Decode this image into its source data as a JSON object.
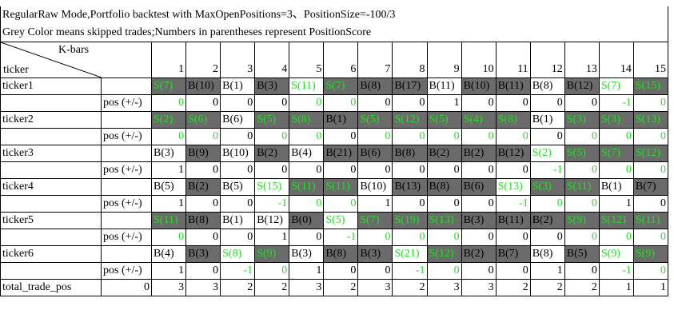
{
  "title_lines": [
    "RegularRaw Mode,Portfolio backtest with MaxOpenPositions=3、PositionSize=-100/3",
    "Grey Color means skipped trades;Numbers in parentheses represent PositionScore"
  ],
  "header": {
    "corner_top": "K-bars",
    "corner_bottom": "ticker",
    "columns": [
      1,
      2,
      3,
      4,
      5,
      6,
      7,
      8,
      9,
      10,
      11,
      12,
      13,
      14,
      15
    ]
  },
  "colors": {
    "skipped_bg": "#6b6b6b",
    "sell_text": "#22e022",
    "border": "#000000"
  },
  "rows": [
    {
      "ticker": "ticker1",
      "pos_label": "pos (+/-)",
      "trades": [
        {
          "text": "S(7)",
          "skipped": true,
          "green": true
        },
        {
          "text": "B(10)",
          "skipped": true,
          "green": false
        },
        {
          "text": "B(1)",
          "skipped": false,
          "green": false
        },
        {
          "text": "B(3)",
          "skipped": true,
          "green": false
        },
        {
          "text": "S(11)",
          "skipped": false,
          "green": true
        },
        {
          "text": "S(7)",
          "skipped": true,
          "green": true
        },
        {
          "text": "B(8)",
          "skipped": true,
          "green": false
        },
        {
          "text": "B(17)",
          "skipped": true,
          "green": false
        },
        {
          "text": "B(11)",
          "skipped": false,
          "green": false
        },
        {
          "text": "B(10)",
          "skipped": true,
          "green": false
        },
        {
          "text": "B(11)",
          "skipped": true,
          "green": false
        },
        {
          "text": "B(8)",
          "skipped": false,
          "green": false
        },
        {
          "text": "B(12)",
          "skipped": true,
          "green": false
        },
        {
          "text": "S(7)",
          "skipped": false,
          "green": true
        },
        {
          "text": "S(15)",
          "skipped": true,
          "green": true
        }
      ],
      "pos": [
        0,
        0,
        0,
        0,
        0,
        0,
        0,
        0,
        1,
        0,
        0,
        0,
        0,
        -1,
        0
      ]
    },
    {
      "ticker": "ticker2",
      "pos_label": "pos (+/-)",
      "trades": [
        {
          "text": "S(2)",
          "skipped": true,
          "green": true
        },
        {
          "text": "S(6)",
          "skipped": true,
          "green": true
        },
        {
          "text": "B(6)",
          "skipped": false,
          "green": false
        },
        {
          "text": "S(5)",
          "skipped": true,
          "green": true
        },
        {
          "text": "S(8)",
          "skipped": true,
          "green": true
        },
        {
          "text": "B(1)",
          "skipped": true,
          "green": false
        },
        {
          "text": "S(5)",
          "skipped": true,
          "green": true
        },
        {
          "text": "S(12)",
          "skipped": true,
          "green": true
        },
        {
          "text": "S(5)",
          "skipped": true,
          "green": true
        },
        {
          "text": "S(4)",
          "skipped": true,
          "green": true
        },
        {
          "text": "S(8)",
          "skipped": true,
          "green": true
        },
        {
          "text": "B(1)",
          "skipped": false,
          "green": false
        },
        {
          "text": "S(3)",
          "skipped": true,
          "green": true
        },
        {
          "text": "S(3)",
          "skipped": true,
          "green": true
        },
        {
          "text": "S(13)",
          "skipped": true,
          "green": true
        }
      ],
      "pos": [
        0,
        0,
        0,
        0,
        0,
        0,
        0,
        0,
        0,
        0,
        0,
        0,
        0,
        0,
        0
      ]
    },
    {
      "ticker": "ticker3",
      "pos_label": "pos (+/-)",
      "trades": [
        {
          "text": "B(3)",
          "skipped": false,
          "green": false
        },
        {
          "text": "B(9)",
          "skipped": true,
          "green": false
        },
        {
          "text": "B(10)",
          "skipped": false,
          "green": false
        },
        {
          "text": "B(2)",
          "skipped": true,
          "green": false
        },
        {
          "text": "B(4)",
          "skipped": false,
          "green": false
        },
        {
          "text": "B(21)",
          "skipped": true,
          "green": false
        },
        {
          "text": "B(6)",
          "skipped": true,
          "green": false
        },
        {
          "text": "B(8)",
          "skipped": true,
          "green": false
        },
        {
          "text": "B(2)",
          "skipped": true,
          "green": false
        },
        {
          "text": "B(2)",
          "skipped": true,
          "green": false
        },
        {
          "text": "B(12)",
          "skipped": true,
          "green": false
        },
        {
          "text": "S(2)",
          "skipped": false,
          "green": true
        },
        {
          "text": "S(5)",
          "skipped": true,
          "green": true
        },
        {
          "text": "S(7)",
          "skipped": true,
          "green": true
        },
        {
          "text": "S(12)",
          "skipped": true,
          "green": true
        }
      ],
      "pos": [
        1,
        0,
        0,
        0,
        0,
        0,
        0,
        0,
        0,
        0,
        0,
        -1,
        0,
        0,
        0
      ]
    },
    {
      "ticker": "ticker4",
      "pos_label": "pos (+/-)",
      "trades": [
        {
          "text": "B(5)",
          "skipped": false,
          "green": false
        },
        {
          "text": "B(2)",
          "skipped": true,
          "green": false
        },
        {
          "text": "B(5)",
          "skipped": false,
          "green": false
        },
        {
          "text": "S(15)",
          "skipped": false,
          "green": true
        },
        {
          "text": "S(11)",
          "skipped": true,
          "green": true
        },
        {
          "text": "S(11)",
          "skipped": true,
          "green": true
        },
        {
          "text": "B(10)",
          "skipped": false,
          "green": false
        },
        {
          "text": "B(13)",
          "skipped": true,
          "green": false
        },
        {
          "text": "B(8)",
          "skipped": true,
          "green": false
        },
        {
          "text": "B(6)",
          "skipped": true,
          "green": false
        },
        {
          "text": "S(13)",
          "skipped": false,
          "green": true
        },
        {
          "text": "S(3)",
          "skipped": true,
          "green": true
        },
        {
          "text": "S(11)",
          "skipped": true,
          "green": true
        },
        {
          "text": "B(1)",
          "skipped": false,
          "green": false
        },
        {
          "text": "B(7)",
          "skipped": true,
          "green": false
        }
      ],
      "pos": [
        1,
        0,
        0,
        -1,
        0,
        0,
        1,
        0,
        0,
        0,
        -1,
        0,
        0,
        1,
        0
      ]
    },
    {
      "ticker": "ticker5",
      "pos_label": "pos (+/-)",
      "trades": [
        {
          "text": "S(11)",
          "skipped": true,
          "green": true
        },
        {
          "text": "B(8)",
          "skipped": true,
          "green": false
        },
        {
          "text": "B(1)",
          "skipped": false,
          "green": false
        },
        {
          "text": "B(12)",
          "skipped": false,
          "green": false
        },
        {
          "text": "B(0)",
          "skipped": true,
          "green": false
        },
        {
          "text": "S(5)",
          "skipped": false,
          "green": true
        },
        {
          "text": "S(7)",
          "skipped": true,
          "green": true
        },
        {
          "text": "S(19)",
          "skipped": true,
          "green": true
        },
        {
          "text": "S(13)",
          "skipped": true,
          "green": true
        },
        {
          "text": "B(3)",
          "skipped": true,
          "green": false
        },
        {
          "text": "B(11)",
          "skipped": true,
          "green": false
        },
        {
          "text": "B(2)",
          "skipped": true,
          "green": false
        },
        {
          "text": "S(9)",
          "skipped": true,
          "green": true
        },
        {
          "text": "S(12)",
          "skipped": true,
          "green": true
        },
        {
          "text": "S(11)",
          "skipped": true,
          "green": true
        }
      ],
      "pos": [
        0,
        0,
        0,
        1,
        0,
        -1,
        0,
        0,
        0,
        0,
        0,
        0,
        0,
        0,
        0
      ]
    },
    {
      "ticker": "ticker6",
      "pos_label": "pos (+/-)",
      "trades": [
        {
          "text": "B(4)",
          "skipped": false,
          "green": false
        },
        {
          "text": "B(3)",
          "skipped": true,
          "green": false
        },
        {
          "text": "S(8)",
          "skipped": false,
          "green": true
        },
        {
          "text": "S(9)",
          "skipped": true,
          "green": true
        },
        {
          "text": "B(3)",
          "skipped": false,
          "green": false
        },
        {
          "text": "B(8)",
          "skipped": true,
          "green": false
        },
        {
          "text": "B(3)",
          "skipped": true,
          "green": false
        },
        {
          "text": "S(21)",
          "skipped": false,
          "green": true
        },
        {
          "text": "S(12)",
          "skipped": true,
          "green": true
        },
        {
          "text": "B(2)",
          "skipped": true,
          "green": false
        },
        {
          "text": "B(7)",
          "skipped": true,
          "green": false
        },
        {
          "text": "B(8)",
          "skipped": false,
          "green": false
        },
        {
          "text": "B(5)",
          "skipped": true,
          "green": false
        },
        {
          "text": "S(9)",
          "skipped": false,
          "green": true
        },
        {
          "text": "S(9)",
          "skipped": true,
          "green": true
        }
      ],
      "pos": [
        1,
        0,
        -1,
        0,
        1,
        0,
        0,
        -1,
        0,
        0,
        0,
        1,
        0,
        -1,
        0
      ]
    }
  ],
  "total": {
    "label": "total_trade_pos",
    "start": 0,
    "values": [
      3,
      3,
      2,
      2,
      3,
      2,
      3,
      2,
      3,
      3,
      2,
      2,
      2,
      1,
      1
    ]
  }
}
